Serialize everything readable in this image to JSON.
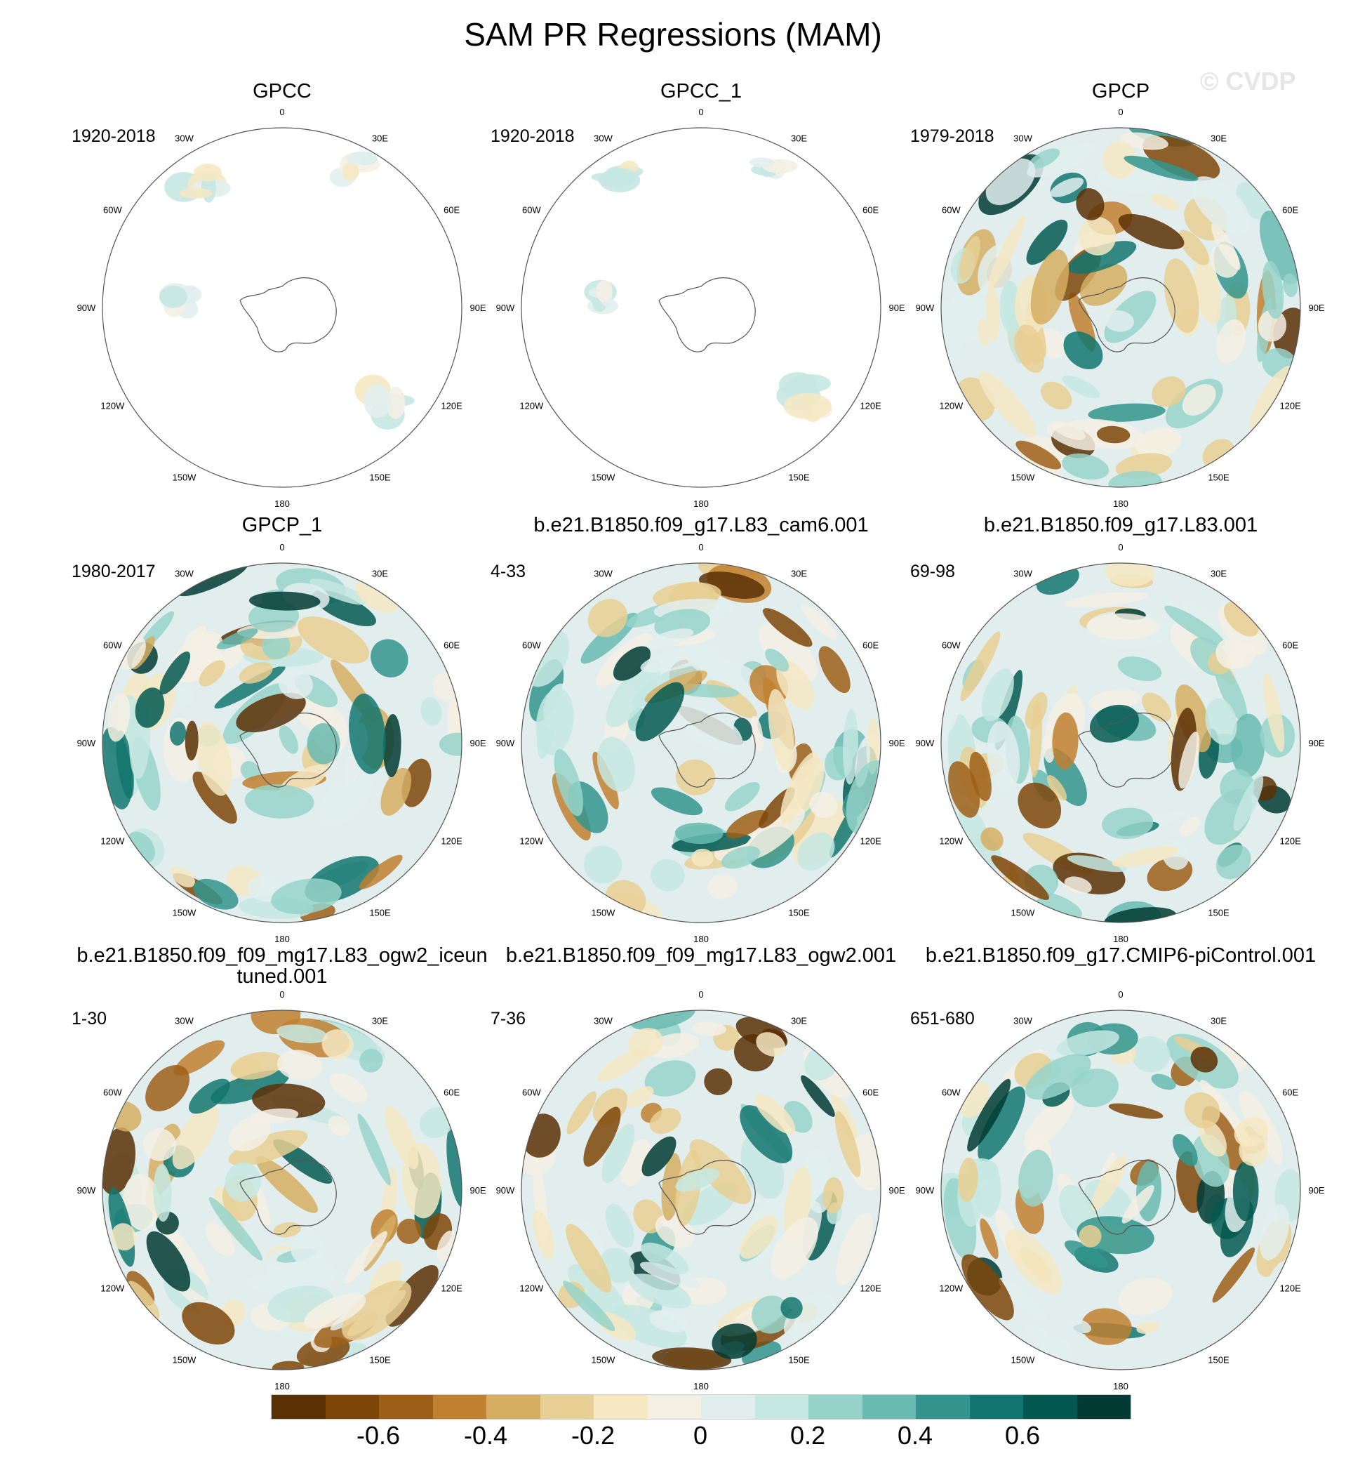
{
  "title": "SAM PR Regressions (MAM)",
  "watermark": "© CVDP",
  "longitude_labels": [
    "0",
    "30E",
    "60E",
    "90E",
    "120E",
    "150E",
    "180",
    "150W",
    "120W",
    "90W",
    "60W",
    "30W"
  ],
  "panels": [
    {
      "title": "GPCC",
      "period": "1920-2018",
      "coverage": "land-only"
    },
    {
      "title": "GPCC_1",
      "period": "1920-2018",
      "coverage": "land-only"
    },
    {
      "title": "GPCP",
      "period": "1979-2018",
      "coverage": "full"
    },
    {
      "title": "GPCP_1",
      "period": "1980-2017",
      "coverage": "full"
    },
    {
      "title": "b.e21.B1850.f09_g17.L83_cam6.001",
      "period": "4-33",
      "coverage": "full"
    },
    {
      "title": "b.e21.B1850.f09_g17.L83.001",
      "period": "69-98",
      "coverage": "full"
    },
    {
      "title": "b.e21.B1850.f09_f09_mg17.L83_ogw2_iceuntuned.001",
      "period": "1-30",
      "coverage": "full"
    },
    {
      "title": "b.e21.B1850.f09_f09_mg17.L83_ogw2.001",
      "period": "7-36",
      "coverage": "full"
    },
    {
      "title": "b.e21.B1850.f09_g17.CMIP6-piControl.001",
      "period": "651-680",
      "coverage": "full"
    }
  ],
  "colorbar": {
    "colors": [
      "#5a3005",
      "#7e4508",
      "#9d5f17",
      "#bf8030",
      "#d5ae62",
      "#e8cf93",
      "#f5e8c3",
      "#f4f0e4",
      "#e2eeee",
      "#c5e7e2",
      "#96d4ca",
      "#69bab0",
      "#33958d",
      "#13756f",
      "#035950",
      "#013b33"
    ],
    "labels": [
      "-0.6",
      "-0.4",
      "-0.2",
      "0",
      "0.2",
      "0.4",
      "0.6"
    ]
  }
}
